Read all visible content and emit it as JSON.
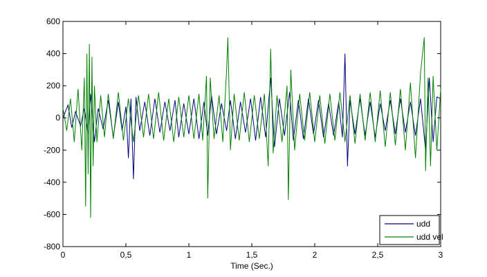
{
  "chart_data": {
    "type": "line",
    "title": "",
    "xlabel": "Time (Sec.)",
    "ylabel": "",
    "xlim": [
      0,
      3
    ],
    "ylim": [
      -800,
      600
    ],
    "grid": false,
    "legend_position": "bottom-right",
    "x_ticks": [
      {
        "value": 0,
        "label": "0"
      },
      {
        "value": 0.5,
        "label": "0,5"
      },
      {
        "value": 1,
        "label": "1"
      },
      {
        "value": 1.5,
        "label": "1,5"
      },
      {
        "value": 2,
        "label": "2"
      },
      {
        "value": 2.5,
        "label": "2,5"
      },
      {
        "value": 3,
        "label": "3"
      }
    ],
    "y_ticks": [
      {
        "value": 600,
        "label": "600"
      },
      {
        "value": 400,
        "label": "400"
      },
      {
        "value": 200,
        "label": "200"
      },
      {
        "value": 0,
        "label": "0"
      },
      {
        "value": -200,
        "label": "-200"
      },
      {
        "value": -400,
        "label": "-400"
      },
      {
        "value": -600,
        "label": "-600"
      },
      {
        "value": -800,
        "label": "-800"
      }
    ],
    "series": [
      {
        "name": "udd",
        "color": "#00007f",
        "points": [
          [
            0,
            0
          ],
          [
            0.04,
            80
          ],
          [
            0.07,
            -60
          ],
          [
            0.1,
            40
          ],
          [
            0.14,
            -50
          ],
          [
            0.17,
            60
          ],
          [
            0.2,
            -100
          ],
          [
            0.22,
            150
          ],
          [
            0.25,
            -150
          ],
          [
            0.28,
            60
          ],
          [
            0.32,
            -70
          ],
          [
            0.36,
            110
          ],
          [
            0.4,
            -120
          ],
          [
            0.44,
            100
          ],
          [
            0.47,
            -80
          ],
          [
            0.5,
            70
          ],
          [
            0.52,
            -250
          ],
          [
            0.54,
            120
          ],
          [
            0.56,
            -380
          ],
          [
            0.58,
            130
          ],
          [
            0.61,
            -80
          ],
          [
            0.65,
            100
          ],
          [
            0.69,
            -110
          ],
          [
            0.73,
            120
          ],
          [
            0.77,
            -90
          ],
          [
            0.81,
            100
          ],
          [
            0.85,
            -80
          ],
          [
            0.89,
            110
          ],
          [
            0.92,
            -120
          ],
          [
            0.96,
            90
          ],
          [
            1.0,
            -100
          ],
          [
            1.04,
            120
          ],
          [
            1.08,
            -130
          ],
          [
            1.12,
            100
          ],
          [
            1.15,
            -110
          ],
          [
            1.18,
            140
          ],
          [
            1.22,
            -100
          ],
          [
            1.26,
            90
          ],
          [
            1.3,
            -80
          ],
          [
            1.33,
            110
          ],
          [
            1.37,
            -130
          ],
          [
            1.41,
            100
          ],
          [
            1.45,
            -90
          ],
          [
            1.49,
            120
          ],
          [
            1.53,
            -140
          ],
          [
            1.57,
            130
          ],
          [
            1.61,
            -120
          ],
          [
            1.65,
            250
          ],
          [
            1.68,
            -180
          ],
          [
            1.72,
            120
          ],
          [
            1.76,
            -110
          ],
          [
            1.8,
            160
          ],
          [
            1.83,
            -140
          ],
          [
            1.87,
            110
          ],
          [
            1.91,
            -130
          ],
          [
            1.95,
            120
          ],
          [
            1.99,
            -100
          ],
          [
            2.03,
            110
          ],
          [
            2.07,
            -120
          ],
          [
            2.11,
            90
          ],
          [
            2.15,
            -110
          ],
          [
            2.19,
            100
          ],
          [
            2.22,
            -120
          ],
          [
            2.24,
            400
          ],
          [
            2.26,
            -300
          ],
          [
            2.28,
            110
          ],
          [
            2.32,
            -100
          ],
          [
            2.36,
            120
          ],
          [
            2.4,
            -110
          ],
          [
            2.44,
            100
          ],
          [
            2.48,
            -120
          ],
          [
            2.52,
            90
          ],
          [
            2.56,
            -80
          ],
          [
            2.6,
            110
          ],
          [
            2.64,
            -100
          ],
          [
            2.68,
            120
          ],
          [
            2.72,
            -90
          ],
          [
            2.76,
            100
          ],
          [
            2.8,
            -110
          ],
          [
            2.84,
            120
          ],
          [
            2.88,
            -200
          ],
          [
            2.91,
            250
          ],
          [
            2.94,
            -150
          ],
          [
            2.97,
            130
          ],
          [
            3.0,
            120
          ]
        ]
      },
      {
        "name": "udd vel",
        "color": "#007f00",
        "points": [
          [
            0,
            60
          ],
          [
            0.03,
            -80
          ],
          [
            0.06,
            120
          ],
          [
            0.09,
            -150
          ],
          [
            0.12,
            180
          ],
          [
            0.15,
            -200
          ],
          [
            0.17,
            250
          ],
          [
            0.18,
            -550
          ],
          [
            0.19,
            400
          ],
          [
            0.2,
            -350
          ],
          [
            0.21,
            460
          ],
          [
            0.22,
            -620
          ],
          [
            0.23,
            380
          ],
          [
            0.24,
            -300
          ],
          [
            0.25,
            200
          ],
          [
            0.27,
            -150
          ],
          [
            0.3,
            140
          ],
          [
            0.33,
            -120
          ],
          [
            0.36,
            150
          ],
          [
            0.4,
            -130
          ],
          [
            0.44,
            160
          ],
          [
            0.48,
            -140
          ],
          [
            0.52,
            120
          ],
          [
            0.56,
            -150
          ],
          [
            0.6,
            140
          ],
          [
            0.64,
            -120
          ],
          [
            0.68,
            150
          ],
          [
            0.72,
            -130
          ],
          [
            0.76,
            160
          ],
          [
            0.8,
            -140
          ],
          [
            0.84,
            120
          ],
          [
            0.88,
            -150
          ],
          [
            0.92,
            130
          ],
          [
            0.96,
            -120
          ],
          [
            1.0,
            140
          ],
          [
            1.04,
            -130
          ],
          [
            1.08,
            150
          ],
          [
            1.11,
            -140
          ],
          [
            1.14,
            260
          ],
          [
            1.15,
            -500
          ],
          [
            1.17,
            250
          ],
          [
            1.2,
            -130
          ],
          [
            1.24,
            140
          ],
          [
            1.27,
            -150
          ],
          [
            1.3,
            300
          ],
          [
            1.31,
            500
          ],
          [
            1.33,
            -200
          ],
          [
            1.36,
            150
          ],
          [
            1.4,
            -140
          ],
          [
            1.44,
            160
          ],
          [
            1.48,
            -150
          ],
          [
            1.52,
            140
          ],
          [
            1.56,
            -130
          ],
          [
            1.6,
            150
          ],
          [
            1.63,
            -300
          ],
          [
            1.65,
            430
          ],
          [
            1.67,
            -220
          ],
          [
            1.7,
            140
          ],
          [
            1.74,
            -150
          ],
          [
            1.78,
            200
          ],
          [
            1.79,
            -510
          ],
          [
            1.81,
            300
          ],
          [
            1.84,
            -200
          ],
          [
            1.88,
            150
          ],
          [
            1.92,
            -140
          ],
          [
            1.96,
            160
          ],
          [
            2.0,
            -150
          ],
          [
            2.04,
            140
          ],
          [
            2.08,
            -160
          ],
          [
            2.12,
            150
          ],
          [
            2.16,
            -140
          ],
          [
            2.2,
            160
          ],
          [
            2.24,
            -150
          ],
          [
            2.28,
            140
          ],
          [
            2.32,
            -160
          ],
          [
            2.36,
            150
          ],
          [
            2.4,
            -140
          ],
          [
            2.44,
            160
          ],
          [
            2.48,
            -150
          ],
          [
            2.52,
            170
          ],
          [
            2.56,
            -180
          ],
          [
            2.6,
            160
          ],
          [
            2.64,
            -170
          ],
          [
            2.68,
            180
          ],
          [
            2.72,
            -200
          ],
          [
            2.76,
            220
          ],
          [
            2.8,
            -250
          ],
          [
            2.84,
            280
          ],
          [
            2.87,
            500
          ],
          [
            2.88,
            -330
          ],
          [
            2.9,
            250
          ],
          [
            2.92,
            -300
          ],
          [
            2.94,
            260
          ],
          [
            2.97,
            -200
          ],
          [
            3.0,
            180
          ]
        ]
      }
    ]
  }
}
